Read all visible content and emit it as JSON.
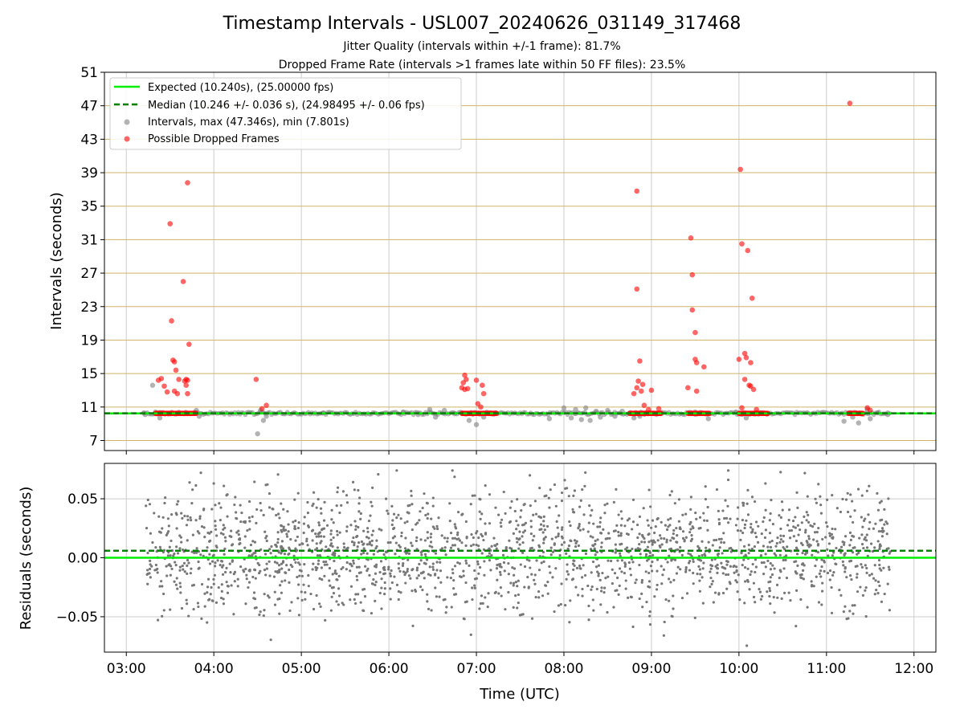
{
  "chart_data": [
    {
      "type": "scatter",
      "title": "Timestamp Intervals - USL007_20240626_031149_317468",
      "subtitles": [
        "Jitter Quality (intervals within +/-1 frame): 81.7%",
        "Dropped Frame Rate (intervals >1 frames late within 50 FF files): 23.5%"
      ],
      "xlabel": "",
      "ylabel": "Intervals (seconds)",
      "xlim": [
        "02:45",
        "12:15"
      ],
      "ylim": [
        5.8,
        51
      ],
      "x_ticks": [
        "03:00",
        "04:00",
        "05:00",
        "06:00",
        "07:00",
        "08:00",
        "09:00",
        "10:00",
        "11:00",
        "12:00"
      ],
      "y_ticks": [
        7,
        11,
        15,
        19,
        23,
        27,
        31,
        35,
        39,
        43,
        47,
        51
      ],
      "grid": true,
      "legend_position": "upper-left",
      "colors": {
        "expected": "#00ee00",
        "median": "#008000",
        "intervals": "#808080",
        "dropped": "#ff0000",
        "hgrid": "#cfb46a"
      },
      "expected_y": 10.24,
      "median_y": 10.246,
      "legend": [
        "Expected (10.240s), (25.00000 fps)",
        "Median (10.246 +/- 0.036 s), (24.98495 +/- 0.06 fps)",
        "Intervals, max (47.346s), min (7.801s)",
        "Possible Dropped Frames"
      ],
      "series": [
        {
          "name": "Intervals, max (47.346s), min (7.801s)",
          "points": [
            {
              "x": "03:12",
              "y": 10.3
            },
            {
              "x": "03:13",
              "y": 10.1
            },
            {
              "x": "03:18",
              "y": 13.6
            },
            {
              "x": "03:20",
              "y": 10.4
            },
            {
              "x": "03:23",
              "y": 9.7
            },
            {
              "x": "03:48",
              "y": 10.6
            },
            {
              "x": "03:50",
              "y": 9.9
            },
            {
              "x": "04:30",
              "y": 7.8
            },
            {
              "x": "04:32",
              "y": 10.6
            },
            {
              "x": "04:34",
              "y": 9.4
            },
            {
              "x": "04:36",
              "y": 9.9
            },
            {
              "x": "05:15",
              "y": 10.3
            },
            {
              "x": "06:10",
              "y": 10.4
            },
            {
              "x": "06:20",
              "y": 10.1
            },
            {
              "x": "06:28",
              "y": 10.7
            },
            {
              "x": "06:32",
              "y": 9.8
            },
            {
              "x": "06:38",
              "y": 10.6
            },
            {
              "x": "06:45",
              "y": 10.2
            },
            {
              "x": "06:55",
              "y": 9.4
            },
            {
              "x": "07:00",
              "y": 8.9
            },
            {
              "x": "07:05",
              "y": 9.8
            },
            {
              "x": "07:50",
              "y": 9.6
            },
            {
              "x": "08:00",
              "y": 10.9
            },
            {
              "x": "08:05",
              "y": 9.7
            },
            {
              "x": "08:08",
              "y": 10.7
            },
            {
              "x": "08:12",
              "y": 9.5
            },
            {
              "x": "08:15",
              "y": 10.9
            },
            {
              "x": "08:18",
              "y": 9.4
            },
            {
              "x": "08:22",
              "y": 10.5
            },
            {
              "x": "08:25",
              "y": 9.8
            },
            {
              "x": "08:30",
              "y": 10.6
            },
            {
              "x": "08:35",
              "y": 9.9
            },
            {
              "x": "08:40",
              "y": 10.5
            },
            {
              "x": "08:48",
              "y": 9.7
            },
            {
              "x": "08:52",
              "y": 9.9
            },
            {
              "x": "09:30",
              "y": 10.4
            },
            {
              "x": "09:39",
              "y": 9.6
            },
            {
              "x": "09:58",
              "y": 10.4
            },
            {
              "x": "10:05",
              "y": 9.7
            },
            {
              "x": "10:15",
              "y": 10.3
            },
            {
              "x": "11:12",
              "y": 9.3
            },
            {
              "x": "11:18",
              "y": 9.8
            },
            {
              "x": "11:22",
              "y": 9.1
            },
            {
              "x": "11:28",
              "y": 10.7
            },
            {
              "x": "11:30",
              "y": 9.6
            },
            {
              "x": "11:35",
              "y": 10.3
            },
            {
              "x": "11:42",
              "y": 10.1
            }
          ]
        },
        {
          "name": "Possible Dropped Frames",
          "points": [
            {
              "x": "03:22",
              "y": 14.2
            },
            {
              "x": "03:24",
              "y": 14.4
            },
            {
              "x": "03:26",
              "y": 13.5
            },
            {
              "x": "03:28",
              "y": 12.8
            },
            {
              "x": "03:30",
              "y": 32.9
            },
            {
              "x": "03:31",
              "y": 21.3
            },
            {
              "x": "03:32",
              "y": 16.6
            },
            {
              "x": "03:33",
              "y": 16.4
            },
            {
              "x": "03:33",
              "y": 12.9
            },
            {
              "x": "03:34",
              "y": 15.4
            },
            {
              "x": "03:35",
              "y": 12.6
            },
            {
              "x": "03:36",
              "y": 14.3
            },
            {
              "x": "03:39",
              "y": 26.0
            },
            {
              "x": "03:40",
              "y": 14.1
            },
            {
              "x": "03:41",
              "y": 14.3
            },
            {
              "x": "03:41",
              "y": 13.6
            },
            {
              "x": "03:42",
              "y": 14.2
            },
            {
              "x": "03:42",
              "y": 37.8
            },
            {
              "x": "03:43",
              "y": 18.5
            },
            {
              "x": "03:42",
              "y": 12.6
            },
            {
              "x": "04:29",
              "y": 14.3
            },
            {
              "x": "04:33",
              "y": 10.8
            },
            {
              "x": "04:36",
              "y": 11.2
            },
            {
              "x": "06:50",
              "y": 13.3
            },
            {
              "x": "06:51",
              "y": 13.9
            },
            {
              "x": "06:52",
              "y": 14.8
            },
            {
              "x": "06:52",
              "y": 13.1
            },
            {
              "x": "06:53",
              "y": 14.3
            },
            {
              "x": "06:54",
              "y": 13.2
            },
            {
              "x": "07:00",
              "y": 14.2
            },
            {
              "x": "07:01",
              "y": 11.4
            },
            {
              "x": "07:03",
              "y": 11.0
            },
            {
              "x": "07:04",
              "y": 13.6
            },
            {
              "x": "07:05",
              "y": 12.6
            },
            {
              "x": "08:48",
              "y": 12.6
            },
            {
              "x": "08:50",
              "y": 36.8
            },
            {
              "x": "08:50",
              "y": 25.1
            },
            {
              "x": "08:50",
              "y": 13.3
            },
            {
              "x": "08:51",
              "y": 14.1
            },
            {
              "x": "08:52",
              "y": 16.5
            },
            {
              "x": "08:53",
              "y": 12.9
            },
            {
              "x": "08:54",
              "y": 13.7
            },
            {
              "x": "08:55",
              "y": 11.2
            },
            {
              "x": "08:58",
              "y": 10.7
            },
            {
              "x": "09:00",
              "y": 13.0
            },
            {
              "x": "09:05",
              "y": 10.8
            },
            {
              "x": "09:25",
              "y": 13.3
            },
            {
              "x": "09:27",
              "y": 31.2
            },
            {
              "x": "09:28",
              "y": 26.8
            },
            {
              "x": "09:28",
              "y": 22.6
            },
            {
              "x": "09:30",
              "y": 19.9
            },
            {
              "x": "09:30",
              "y": 16.7
            },
            {
              "x": "09:31",
              "y": 16.3
            },
            {
              "x": "09:31",
              "y": 12.9
            },
            {
              "x": "09:36",
              "y": 15.8
            },
            {
              "x": "10:00",
              "y": 16.7
            },
            {
              "x": "10:01",
              "y": 39.4
            },
            {
              "x": "10:02",
              "y": 30.5
            },
            {
              "x": "10:02",
              "y": 10.9
            },
            {
              "x": "10:04",
              "y": 17.4
            },
            {
              "x": "10:04",
              "y": 14.3
            },
            {
              "x": "10:05",
              "y": 16.9
            },
            {
              "x": "10:06",
              "y": 29.7
            },
            {
              "x": "10:07",
              "y": 13.6
            },
            {
              "x": "10:08",
              "y": 16.3
            },
            {
              "x": "10:09",
              "y": 24.0
            },
            {
              "x": "10:10",
              "y": 13.1
            },
            {
              "x": "10:08",
              "y": 13.5
            },
            {
              "x": "10:12",
              "y": 10.7
            },
            {
              "x": "11:16",
              "y": 47.3
            },
            {
              "x": "11:28",
              "y": 10.9
            },
            {
              "x": "11:30",
              "y": 10.6
            }
          ]
        }
      ],
      "dense_bands": [
        {
          "from": "03:20",
          "to": "03:48",
          "y": 10.24,
          "series": "dropped"
        },
        {
          "from": "06:50",
          "to": "07:14",
          "y": 10.24,
          "series": "dropped"
        },
        {
          "from": "08:45",
          "to": "09:07",
          "y": 10.24,
          "series": "dropped"
        },
        {
          "from": "09:25",
          "to": "09:40",
          "y": 10.24,
          "series": "dropped"
        },
        {
          "from": "10:00",
          "to": "10:20",
          "y": 10.24,
          "series": "dropped"
        },
        {
          "from": "11:15",
          "to": "11:25",
          "y": 10.24,
          "series": "dropped"
        }
      ]
    },
    {
      "type": "scatter",
      "xlabel": "Time (UTC)",
      "ylabel": "Residuals (seconds)",
      "xlim": [
        "02:45",
        "12:15"
      ],
      "ylim": [
        -0.08,
        0.08
      ],
      "x_ticks": [
        "03:00",
        "04:00",
        "05:00",
        "06:00",
        "07:00",
        "08:00",
        "09:00",
        "10:00",
        "11:00",
        "12:00"
      ],
      "y_ticks": [
        {
          "v": 0.05,
          "label": "0.05"
        },
        {
          "v": 0.0,
          "label": "0.00"
        },
        {
          "v": -0.05,
          "label": "−0.05"
        }
      ],
      "grid": true,
      "x_range": [
        "03:13",
        "11:44"
      ],
      "spread": 0.025,
      "expected_y": 0.0,
      "median_y": 0.006,
      "colors": {
        "points": "#777777",
        "expected": "#00ee00",
        "median": "#008000",
        "grid": "#cccccc"
      }
    }
  ]
}
